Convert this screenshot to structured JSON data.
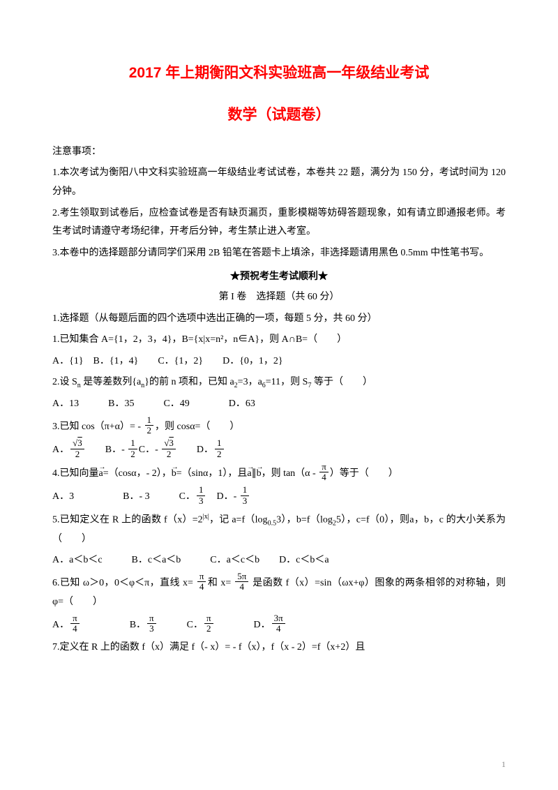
{
  "title_main": "2017 年上期衡阳文科实验班高一年级结业考试",
  "title_sub": "数学（试题卷）",
  "notice_header": "注意事项：",
  "notice1": "1.本次考试为衡阳八中文科实验班高一年级结业考试试卷，本卷共 22 题，满分为 150 分，考试时间为 120 分钟。",
  "notice2": "2.考生领取到试卷后，应检查试卷是否有缺页漏页，重影模糊等妨碍答题现象，如有请立即通报老师。考生考试时请遵守考场纪律，开考后分钟，考生禁止进入考室。",
  "notice3": "3.本卷中的选择题部分请同学们采用 2B 铅笔在答题卡上填涂，非选择题请用黑色 0.5mm 中性笔书写。",
  "wish": "★预祝考生考试顺利★",
  "part1": "第 I 卷　选择题（共 60 分）",
  "section1": "1.选择题（从每题后面的四个选项中选出正确的一项，每题 5 分，共 60 分）",
  "q1": "1.已知集合 A={1，2，3，4}，B={x|x=n²，n∈A}，则 A∩B=（　　）",
  "q1_opts": "A．{1}　B．{1，4}　　C．{1，2}　　D．{0，1，2}",
  "q2_pre": "2.设 S",
  "q2_mid1": " 是等差数列{a",
  "q2_mid2": "}的前 n 项和，已知 a",
  "q2_mid3": "=3，a",
  "q2_mid4": "=11，则 S",
  "q2_end": " 等于（　　）",
  "q2_opts": "A．13　　　B．35　　　C．49　　　　D．63",
  "q3_pre": "3.已知 cos（π+α）= - ",
  "q3_end": "，则 cosα=（　　）",
  "q3_a": "A．",
  "q3_b": "　　B．- ",
  "q3_c": "C．- ",
  "q3_d": "　　D．",
  "q4_pre": "4.已知向量",
  "q4_mid1": "=（cosα，- 2），",
  "q4_mid2": "=（sinα，1），且",
  "q4_mid3": "∥",
  "q4_mid4": "，则 tan（α - ",
  "q4_end": "）等于（　　）",
  "q4_a": "A．3　　　　　B．- 3　　　C．",
  "q4_d": "　D．- ",
  "q5_pre": "5.已知定义在 R 上的函数 f（x）=2",
  "q5_mid": "，记 a=f（log",
  "q5_mid2": "3），b=f（log",
  "q5_end": "5），c=f（0），则a，b，c 的大小关系为（　　）",
  "q5_opts": "A．a＜b＜c　　　B．c＜a＜b　　　C．a＜c＜b　　D．c＜b＜a",
  "q6_pre": "6.已知 ω＞0，0＜φ＜π，直线 x= ",
  "q6_mid": "和 x= ",
  "q6_end": " 是函数 f（x）=sin（ωx+φ）图象的两条相邻的对称轴，则 φ=（　　）",
  "q6_a": "A．",
  "q6_b": "　　　　　B．",
  "q6_c": "　　　C．",
  "q6_d": "　　　　D．",
  "q7": "7.定义在 R 上的函数 f（x）满足 f（- x）= - f（x），f（x - 2）=f（x+2）且",
  "page_num": "1",
  "a_vec": "a",
  "b_vec": "b",
  "n_sub": "n",
  "sub2": "2",
  "sub6": "6",
  "sub7": "7",
  "sub05": "0.5",
  "abs_x": "|x|",
  "one": "1",
  "two": "2",
  "three": "3",
  "four": "4",
  "sqrt3": "3",
  "five": "5",
  "pi": "π",
  "fivepi": "5π",
  "threepi": "3π"
}
